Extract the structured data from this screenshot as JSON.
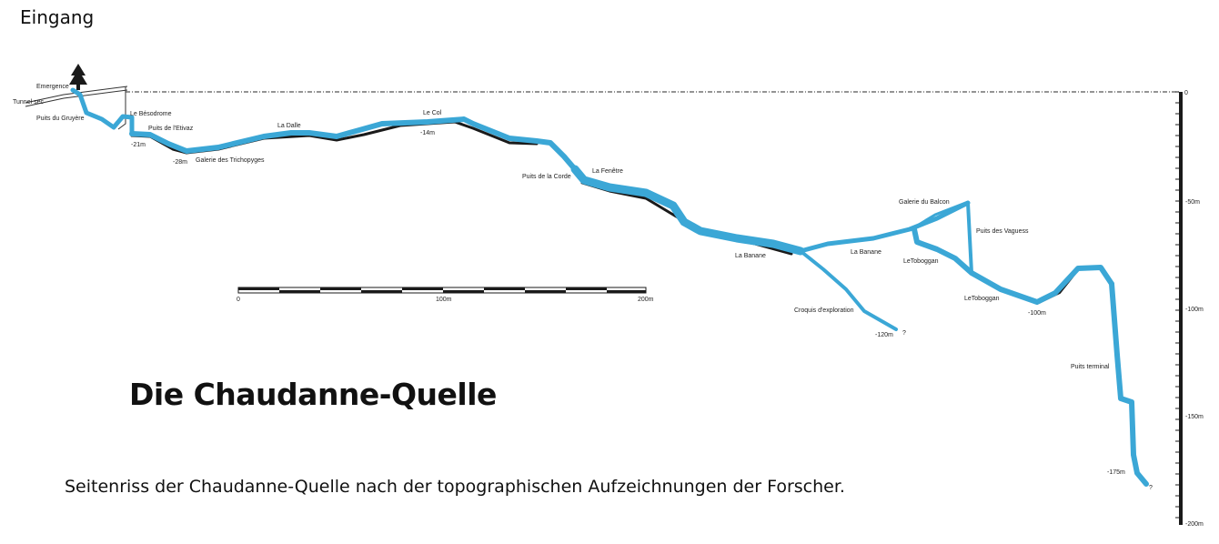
{
  "entry_label": "Eingang",
  "title": "Die Chaudanne-Quelle",
  "caption": "Seitenriss der Chaudanne-Quelle nach der topographischen Aufzeichnungen der Forscher.",
  "colors": {
    "water": "#3ba7d6",
    "rock": "#1a1a1a",
    "reference_line": "#555555"
  },
  "icons": [
    "tree-icon"
  ],
  "cave_labels": {
    "emergence": "Emergence",
    "tunnel_sec": "Tunnel sec",
    "puits_gruyere": "Puits du Gruyère",
    "besodrome": "Le Bésodrome",
    "puits_etivaz": "Puits de l'Etivaz",
    "depth_21": "-21m",
    "depth_28": "-28m",
    "galerie_trichopyges": "Galerie des Trichopyges",
    "la_dalle": "La Dalle",
    "le_col": "Le Col",
    "depth_14": "-14m",
    "puits_corde": "Puits de la Corde",
    "la_fenetre": "La Fenêtre",
    "galerie_balcon": "Galerie du Balcon",
    "puits_vaguess": "Puits des Vaguess",
    "la_banane_1": "La Banane",
    "la_banane_2": "La Banane",
    "letoboggan_1": "LeToboggan",
    "letoboggan_2": "LeToboggan",
    "depth_100": "-100m",
    "croquis": "Croquis d'exploration",
    "depth_120": "-120m",
    "q1": "?",
    "puits_terminal": "Puits terminal",
    "depth_175": "-175m",
    "q2": "?"
  },
  "scale_bar": {
    "labels": [
      "0",
      "100m",
      "200m"
    ]
  },
  "depth_axis": {
    "labels": [
      "0",
      "-50m",
      "-100m",
      "-150m",
      "-200m"
    ]
  }
}
